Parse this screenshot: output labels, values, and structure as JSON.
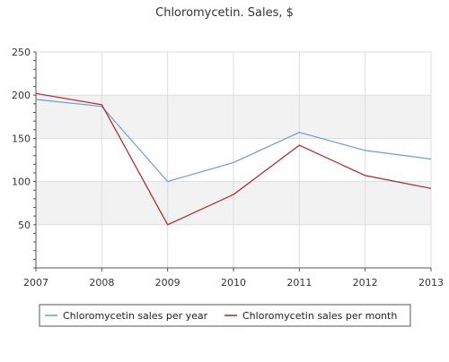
{
  "chart_data": {
    "type": "line",
    "title": "Chloromycetin. Sales, $",
    "xlabel": "",
    "ylabel": "",
    "categories": [
      "2007",
      "2008",
      "2009",
      "2010",
      "2011",
      "2012",
      "2013"
    ],
    "ylim": [
      0,
      250
    ],
    "yticks": [
      50,
      100,
      150,
      200,
      250
    ],
    "grid": true,
    "legend_position": "bottom",
    "series": [
      {
        "name": "Chloromycetin sales per year",
        "color": "#6b9bd6",
        "values": [
          195,
          187,
          100,
          122,
          157,
          136,
          126
        ]
      },
      {
        "name": "Chloromycetin sales per month",
        "color": "#b22222",
        "values": [
          202,
          189,
          50,
          85,
          142,
          107,
          92
        ]
      }
    ]
  }
}
